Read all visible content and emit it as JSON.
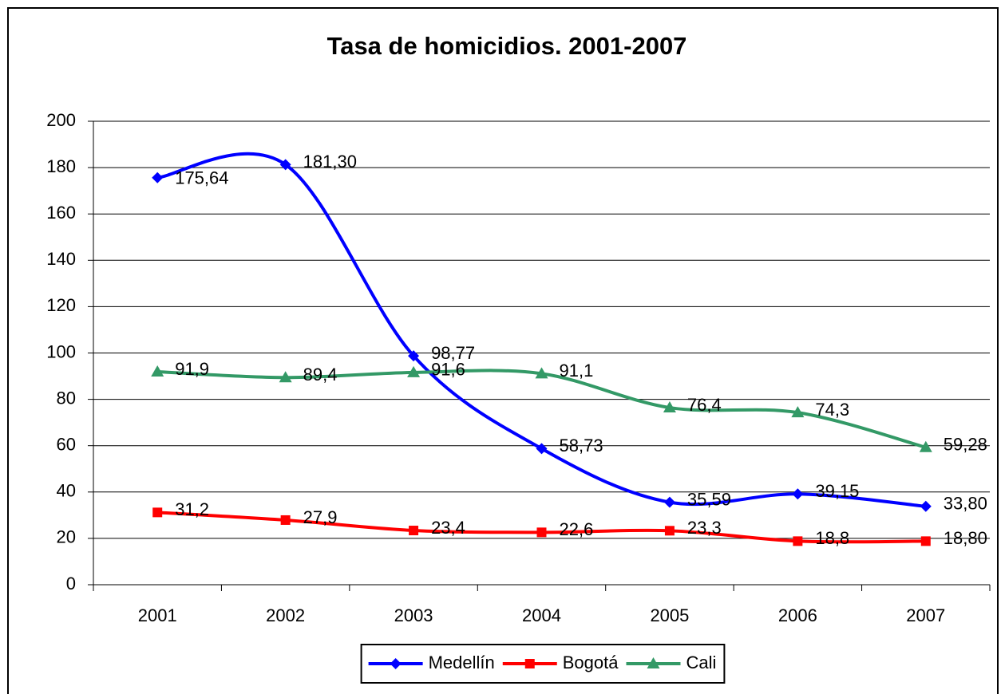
{
  "chart_data": {
    "type": "line",
    "title": "Tasa de homicidios. 2001-2007",
    "categories": [
      "2001",
      "2002",
      "2003",
      "2004",
      "2005",
      "2006",
      "2007"
    ],
    "series": [
      {
        "name": "Medellín",
        "color": "#0000ff",
        "marker": "diamond",
        "values": [
          175.64,
          181.3,
          98.77,
          58.73,
          35.59,
          39.15,
          33.8
        ],
        "value_labels": [
          "175,64",
          "181,30",
          "98,77",
          "58,73",
          "35,59",
          "39,15",
          "33,80"
        ]
      },
      {
        "name": "Bogotá",
        "color": "#ff0000",
        "marker": "square",
        "values": [
          31.2,
          27.9,
          23.4,
          22.6,
          23.3,
          18.8,
          18.8
        ],
        "value_labels": [
          "31,2",
          "27,9",
          "23,4",
          "22,6",
          "23,3",
          "18,8",
          "18,80"
        ]
      },
      {
        "name": "Cali",
        "color": "#339966",
        "marker": "triangle",
        "values": [
          91.9,
          89.4,
          91.6,
          91.1,
          76.4,
          74.3,
          59.28
        ],
        "value_labels": [
          "91,9",
          "89,4",
          "91,6",
          "91,1",
          "76,4",
          "74,3",
          "59,28"
        ]
      }
    ],
    "ylim": [
      0,
      200
    ],
    "yticks": [
      0,
      20,
      40,
      60,
      80,
      100,
      120,
      140,
      160,
      180,
      200
    ],
    "grid": true,
    "smooth": true,
    "legend": "bottom"
  }
}
